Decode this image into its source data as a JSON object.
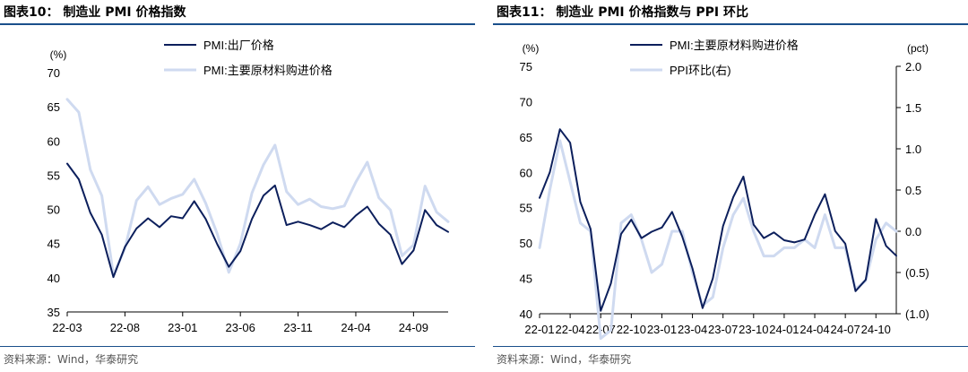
{
  "left": {
    "title": "图表10： 制造业 PMI 价格指数",
    "source": "资料来源：Wind，华泰研究"
  },
  "right": {
    "title": "图表11： 制造业 PMI 价格指数与 PPI 环比",
    "source": "资料来源：Wind，华泰研究"
  },
  "colors": {
    "dark": "#0c1f5c",
    "light": "#cfdaf0",
    "rule": "#1a4f8b"
  },
  "chart_data": [
    {
      "type": "line",
      "title": "图表10： 制造业 PMI 价格指数",
      "ylabel": "(%)",
      "ylim": [
        35,
        70
      ],
      "yticks": [
        35,
        40,
        45,
        50,
        55,
        60,
        65,
        70
      ],
      "x": [
        "22-03",
        "22-04",
        "22-05",
        "22-06",
        "22-07",
        "22-08",
        "22-09",
        "22-10",
        "22-11",
        "22-12",
        "23-01",
        "23-02",
        "23-03",
        "23-04",
        "23-05",
        "23-06",
        "23-07",
        "23-08",
        "23-09",
        "23-10",
        "23-11",
        "23-12",
        "24-01",
        "24-02",
        "24-03",
        "24-04",
        "24-05",
        "24-06",
        "24-07",
        "24-08",
        "24-09",
        "24-10",
        "24-11",
        "24-12"
      ],
      "xticks": [
        "22-03",
        "22-08",
        "23-01",
        "23-06",
        "23-11",
        "24-04",
        "24-09"
      ],
      "legend_position": "top",
      "series": [
        {
          "name": "PMI:出厂价格",
          "color": "#0c1f5c",
          "width": 2,
          "values": [
            56.7,
            54.4,
            49.5,
            46.3,
            40.1,
            44.5,
            47.2,
            48.7,
            47.4,
            49.0,
            48.7,
            51.2,
            48.6,
            44.9,
            41.6,
            43.9,
            48.6,
            52.0,
            53.5,
            47.7,
            48.2,
            47.7,
            47.1,
            48.1,
            47.4,
            49.1,
            50.4,
            47.9,
            46.3,
            42.0,
            44.0,
            49.9,
            47.7,
            46.7
          ]
        },
        {
          "name": "PMI:主要原材料购进价格",
          "color": "#cfdaf0",
          "width": 3,
          "values": [
            66.1,
            64.2,
            55.8,
            52.0,
            40.4,
            44.3,
            51.3,
            53.3,
            50.7,
            51.6,
            52.2,
            54.4,
            50.9,
            46.4,
            40.8,
            45.0,
            52.4,
            56.5,
            59.4,
            52.6,
            50.7,
            51.5,
            50.4,
            50.1,
            50.5,
            54.0,
            56.9,
            51.7,
            49.9,
            43.2,
            44.8,
            53.4,
            49.6,
            48.2
          ]
        }
      ]
    },
    {
      "type": "line",
      "title": "图表11： 制造业 PMI 价格指数与 PPI 环比",
      "ylabel": "(%)",
      "y2label": "(pct)",
      "ylim": [
        40,
        75
      ],
      "y2lim": [
        -1.0,
        2.0
      ],
      "yticks": [
        40,
        45,
        50,
        55,
        60,
        65,
        70,
        75
      ],
      "y2ticks": [
        -1.0,
        -0.5,
        0.0,
        0.5,
        1.0,
        1.5,
        2.0
      ],
      "y2ticklabels": [
        "(1.0)",
        "(0.5)",
        "0.0",
        "0.5",
        "1.0",
        "1.5",
        "2.0"
      ],
      "x": [
        "22-01",
        "22-02",
        "22-03",
        "22-04",
        "22-05",
        "22-06",
        "22-07",
        "22-08",
        "22-09",
        "22-10",
        "22-11",
        "22-12",
        "23-01",
        "23-02",
        "23-03",
        "23-04",
        "23-05",
        "23-06",
        "23-07",
        "23-08",
        "23-09",
        "23-10",
        "23-11",
        "23-12",
        "24-01",
        "24-02",
        "24-03",
        "24-04",
        "24-05",
        "24-06",
        "24-07",
        "24-08",
        "24-09",
        "24-10",
        "24-11",
        "24-12"
      ],
      "xticks": [
        "22-01",
        "22-04",
        "22-07",
        "22-10",
        "23-01",
        "23-04",
        "23-07",
        "23-10",
        "24-01",
        "24-04",
        "24-07",
        "24-10"
      ],
      "legend_position": "top",
      "series": [
        {
          "name": "PMI:主要原材料购进价格",
          "axis": "left",
          "color": "#0c1f5c",
          "width": 2,
          "values": [
            56.4,
            60.0,
            66.1,
            64.2,
            55.8,
            52.0,
            40.4,
            44.3,
            51.3,
            53.3,
            50.7,
            51.6,
            52.2,
            54.4,
            50.9,
            46.4,
            40.8,
            45.0,
            52.4,
            56.5,
            59.4,
            52.6,
            50.7,
            51.5,
            50.4,
            50.1,
            50.5,
            54.0,
            56.9,
            51.7,
            49.9,
            43.2,
            44.8,
            53.4,
            49.6,
            48.2
          ]
        },
        {
          "name": "PPI环比(右)",
          "axis": "right",
          "color": "#cfdaf0",
          "width": 3,
          "values": [
            -0.2,
            0.5,
            1.1,
            0.6,
            0.1,
            0.0,
            -1.3,
            -1.2,
            0.1,
            0.2,
            -0.1,
            -0.5,
            -0.4,
            0.0,
            0.0,
            -0.5,
            -0.9,
            -0.8,
            -0.2,
            0.2,
            0.4,
            0.0,
            -0.3,
            -0.3,
            -0.2,
            -0.2,
            -0.1,
            -0.2,
            0.2,
            -0.2,
            -0.2,
            -0.7,
            -0.6,
            -0.1,
            0.1,
            0.0
          ]
        }
      ]
    }
  ]
}
